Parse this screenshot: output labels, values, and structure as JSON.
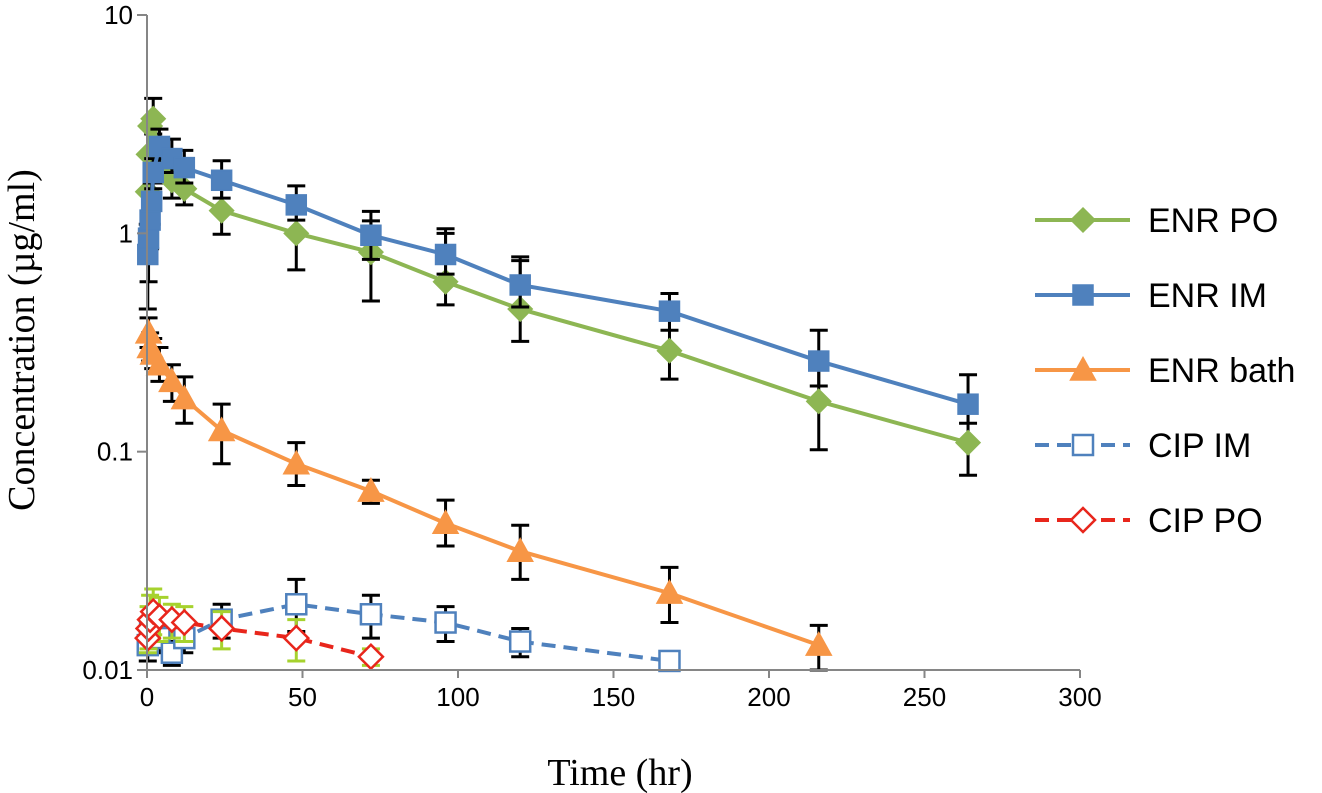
{
  "chart_data": {
    "type": "line",
    "title": "",
    "xlabel": "Time (hr)",
    "ylabel": "Concentration (µg/ml)",
    "xlim": [
      0,
      300
    ],
    "ylim": [
      0.01,
      10
    ],
    "yscale": "log",
    "xticks": [
      0,
      50,
      100,
      150,
      200,
      250,
      300
    ],
    "yticks": [
      0.01,
      0.1,
      1,
      10
    ],
    "ytick_labels": [
      "0.01",
      "0.1",
      "1",
      "10"
    ],
    "grid": false,
    "legend_position": "right",
    "series": [
      {
        "name": "ENR PO",
        "color": "#8DB653",
        "marker": "diamond",
        "line_style": "solid",
        "marker_fill": "filled",
        "error_bar_color": "#000000",
        "x": [
          0.25,
          0.5,
          1,
          2,
          4,
          8,
          12,
          24,
          48,
          72,
          96,
          120,
          168,
          216,
          264
        ],
        "y": [
          1.55,
          2.3,
          3.1,
          3.35,
          2.0,
          1.75,
          1.6,
          1.27,
          1.0,
          0.82,
          0.6,
          0.45,
          0.29,
          0.17,
          0.11
        ],
        "err_low": [
          0,
          0,
          0,
          0.5,
          0.3,
          0.3,
          0.25,
          0.28,
          0.32,
          0.33,
          0.13,
          0.13,
          0.075,
          0.068,
          0.032
        ],
        "err_high": [
          0,
          0,
          0,
          0.8,
          0.4,
          0.4,
          0.3,
          0.35,
          0.27,
          0.32,
          0.4,
          0.3,
          0.14,
          0.09,
          0.045
        ]
      },
      {
        "name": "ENR IM",
        "color": "#4F81BD",
        "marker": "square",
        "line_style": "solid",
        "marker_fill": "filled",
        "error_bar_color": "#000000",
        "x": [
          0.25,
          0.5,
          1,
          1.5,
          2,
          4,
          8,
          12,
          24,
          48,
          72,
          96,
          120,
          168,
          216,
          264
        ],
        "y": [
          0.8,
          0.95,
          1.15,
          1.4,
          1.9,
          2.5,
          2.2,
          2.0,
          1.75,
          1.35,
          0.98,
          0.8,
          0.58,
          0.44,
          0.26,
          0.165
        ],
        "err_low": [
          0.35,
          0.35,
          0.3,
          0.3,
          0.3,
          0.4,
          0.3,
          0.3,
          0.3,
          0.2,
          0.22,
          0.15,
          0.12,
          0.08,
          0.06,
          0.03
        ],
        "err_high": [
          0.3,
          0.3,
          0.3,
          0.3,
          0.3,
          0.5,
          0.5,
          0.4,
          0.4,
          0.3,
          0.28,
          0.25,
          0.2,
          0.09,
          0.1,
          0.06
        ]
      },
      {
        "name": "ENR bath",
        "color": "#F79646",
        "marker": "triangle",
        "line_style": "solid",
        "marker_fill": "filled",
        "error_bar_color": "#000000",
        "x": [
          0.5,
          1,
          2,
          4,
          8,
          12,
          24,
          48,
          72,
          96,
          120,
          168,
          216
        ],
        "y": [
          0.35,
          0.3,
          0.28,
          0.25,
          0.21,
          0.175,
          0.125,
          0.088,
          0.066,
          0.047,
          0.035,
          0.0225,
          0.013
        ],
        "err_low": [
          0.05,
          0.04,
          0.04,
          0.04,
          0.04,
          0.04,
          0.037,
          0.018,
          0.008,
          0.01,
          0.009,
          0.006,
          0.003
        ],
        "err_high": [
          0.06,
          0.05,
          0.05,
          0.05,
          0.04,
          0.045,
          0.04,
          0.022,
          0.008,
          0.013,
          0.011,
          0.007,
          0.003
        ]
      },
      {
        "name": "CIP IM",
        "color": "#4F81BD",
        "marker": "square",
        "line_style": "dashed",
        "marker_fill": "open",
        "error_bar_color": "#000000",
        "x": [
          0.25,
          1,
          2,
          4,
          8,
          12,
          24,
          48,
          72,
          96,
          120,
          168
        ],
        "y": [
          0.013,
          0.015,
          0.016,
          0.014,
          0.012,
          0.014,
          0.017,
          0.02,
          0.018,
          0.0165,
          0.0135,
          0.011
        ],
        "err_low": [
          0.002,
          0.002,
          0.002,
          0.002,
          0.0015,
          0.002,
          0.003,
          0.005,
          0.004,
          0.003,
          0.002,
          0.0005
        ],
        "err_high": [
          0.002,
          0.002,
          0.002,
          0.002,
          0.0015,
          0.002,
          0.003,
          0.006,
          0.004,
          0.003,
          0.002,
          0.0005
        ]
      },
      {
        "name": "CIP PO",
        "color": "#E8261C",
        "marker": "diamond",
        "line_style": "dashed",
        "marker_fill": "open",
        "error_bar_color": "#A6D22E",
        "x": [
          0.25,
          0.5,
          1,
          2,
          4,
          8,
          12,
          24,
          48,
          72
        ],
        "y": [
          0.014,
          0.0155,
          0.017,
          0.0185,
          0.0175,
          0.017,
          0.0165,
          0.0155,
          0.014,
          0.0115
        ],
        "err_low": [
          0.002,
          0.003,
          0.003,
          0.004,
          0.004,
          0.003,
          0.003,
          0.003,
          0.003,
          0.001
        ],
        "err_high": [
          0.003,
          0.004,
          0.005,
          0.005,
          0.004,
          0.003,
          0.003,
          0.003,
          0.003,
          0.001
        ]
      }
    ]
  }
}
